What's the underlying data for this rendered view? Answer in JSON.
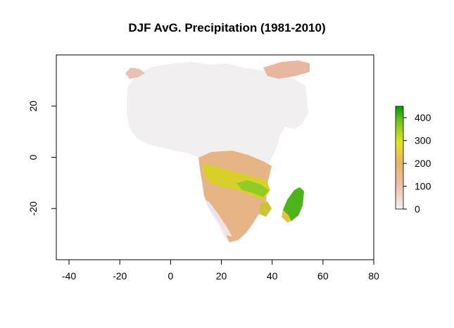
{
  "title": "DJF AvG. Precipitation (1981-2010)",
  "map": {
    "x_ticks": [
      "-40",
      "-20",
      "0",
      "20",
      "40",
      "60",
      "80"
    ],
    "x_tick_values": [
      -40,
      -20,
      0,
      20,
      40,
      60,
      80
    ],
    "y_ticks": [
      "-20",
      "0",
      "20"
    ],
    "y_tick_values": [
      -20,
      0,
      20
    ],
    "xlim": [
      -45,
      80
    ],
    "ylim": [
      -40,
      40
    ]
  },
  "legend": {
    "ticks": [
      "0",
      "100",
      "200",
      "300",
      "400"
    ],
    "tick_values": [
      0,
      100,
      200,
      300,
      400
    ],
    "range": [
      0,
      450
    ],
    "colors": [
      "#f2f2f2",
      "#efc3b1",
      "#e9b462",
      "#e1e61d",
      "#72c61a",
      "#049a05"
    ]
  }
}
